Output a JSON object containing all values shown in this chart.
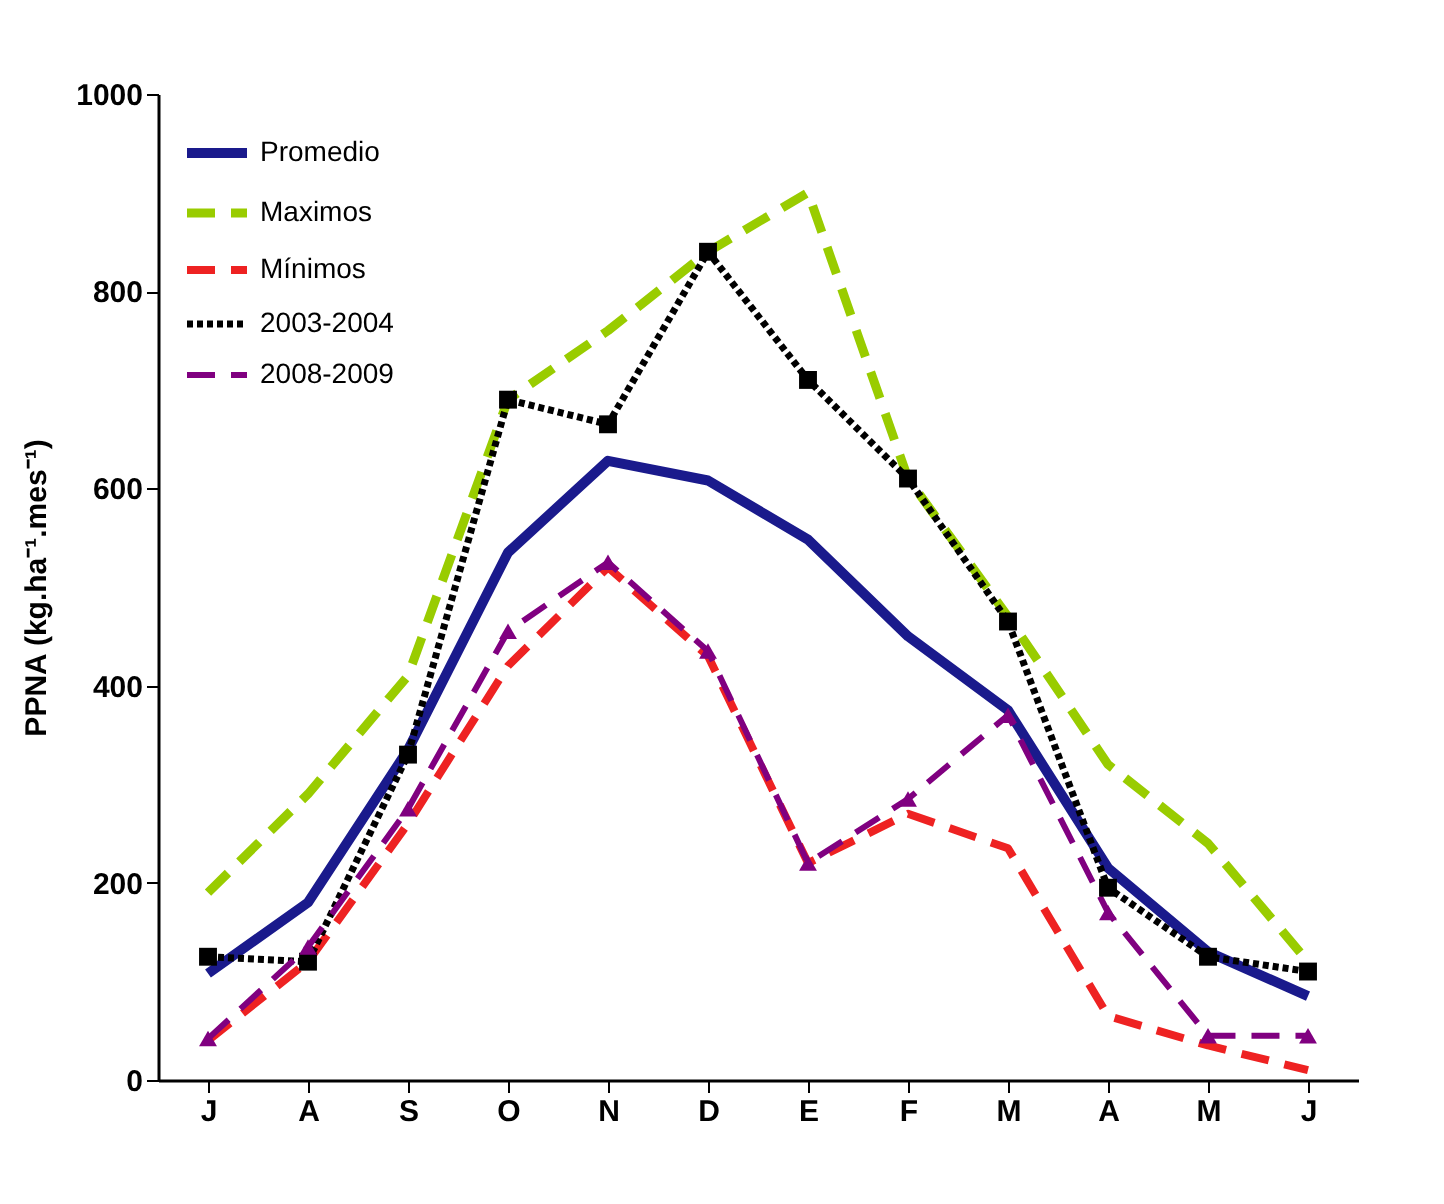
{
  "chart_data": {
    "type": "line",
    "ylabel": "PPNA (kg.ha⁻¹.mes⁻¹)",
    "categories": [
      "J",
      "A",
      "S",
      "O",
      "N",
      "D",
      "E",
      "F",
      "M",
      "A",
      "M",
      "J"
    ],
    "ylim": [
      0,
      1000
    ],
    "yticks": [
      0,
      200,
      400,
      600,
      800,
      1000
    ],
    "grid": false,
    "legend": "top left",
    "series": [
      {
        "name": "Promedio",
        "color": "#1a1a8c",
        "line_style": "solid",
        "marker": "none",
        "values": [
          108,
          180,
          335,
          535,
          628,
          608,
          548,
          450,
          375,
          215,
          130,
          85
        ]
      },
      {
        "name": "Maximos",
        "color": "#99cc00",
        "line_style": "dashed",
        "marker": "none",
        "values": [
          190,
          290,
          410,
          690,
          760,
          840,
          900,
          610,
          470,
          320,
          240,
          120
        ]
      },
      {
        "name": "Mínimos",
        "color": "#ee2222",
        "line_style": "dashed",
        "marker": "none",
        "values": [
          40,
          120,
          260,
          420,
          520,
          430,
          220,
          270,
          235,
          65,
          35,
          10
        ]
      },
      {
        "name": "2003-2004",
        "color": "#000000",
        "line_style": "dotted",
        "marker": "square",
        "values": [
          125,
          120,
          330,
          690,
          665,
          840,
          710,
          610,
          465,
          195,
          125,
          110
        ]
      },
      {
        "name": "2008-2009",
        "color": "#800080",
        "line_style": "dashed",
        "marker": "triangle",
        "values": [
          42,
          135,
          275,
          455,
          525,
          435,
          220,
          285,
          370,
          170,
          45,
          45
        ]
      }
    ]
  }
}
